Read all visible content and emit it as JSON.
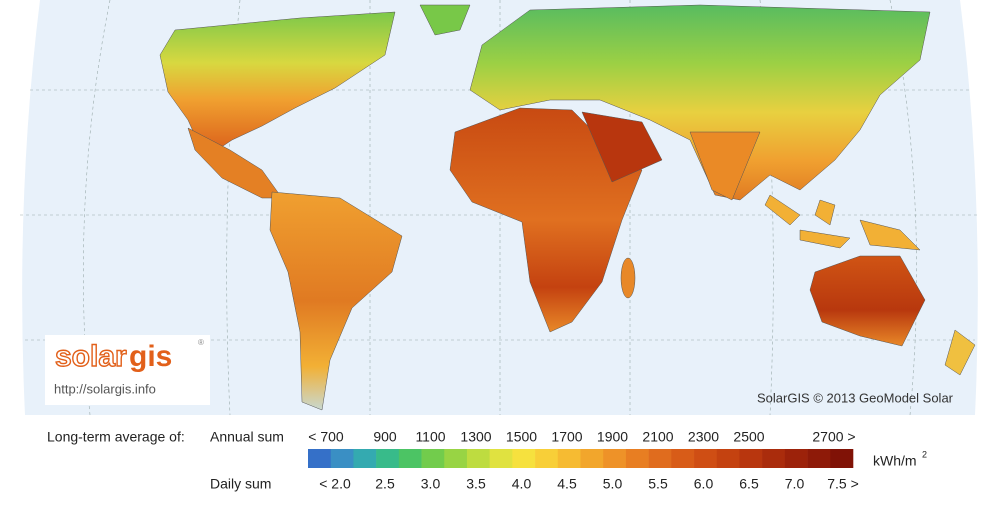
{
  "logo": {
    "text_a": "solar",
    "text_b": "gis",
    "mark": "®",
    "url": "http://solargis.info"
  },
  "credit": "SolarGIS © 2013 GeoModel Solar",
  "legend": {
    "title": "Long-term average of:",
    "annual_label": "Annual sum",
    "annual_ticks": [
      "< 700",
      "900",
      "1100",
      "1300",
      "1500",
      "1700",
      "1900",
      "2100",
      "2300",
      "2500",
      "2700 >"
    ],
    "daily_label": "Daily sum",
    "daily_ticks": [
      "< 2.0",
      "2.5",
      "3.0",
      "3.5",
      "4.0",
      "4.5",
      "5.0",
      "5.5",
      "6.0",
      "6.5",
      "7.0",
      "7.5 >"
    ],
    "unit": "kWh/m",
    "unit_sup": "2",
    "colors": [
      "#3570c8",
      "#3a8fc4",
      "#34aab0",
      "#38bb8a",
      "#4cc464",
      "#72cc4c",
      "#98d444",
      "#bedc40",
      "#e0e240",
      "#f6e13e",
      "#f8cf38",
      "#f6bb32",
      "#f2a62c",
      "#ee9228",
      "#e87e22",
      "#e06c1e",
      "#d85c18",
      "#cf4e14",
      "#c44210",
      "#b8360e",
      "#aa2c0c",
      "#9c220a",
      "#8e1a08",
      "#801206"
    ]
  }
}
